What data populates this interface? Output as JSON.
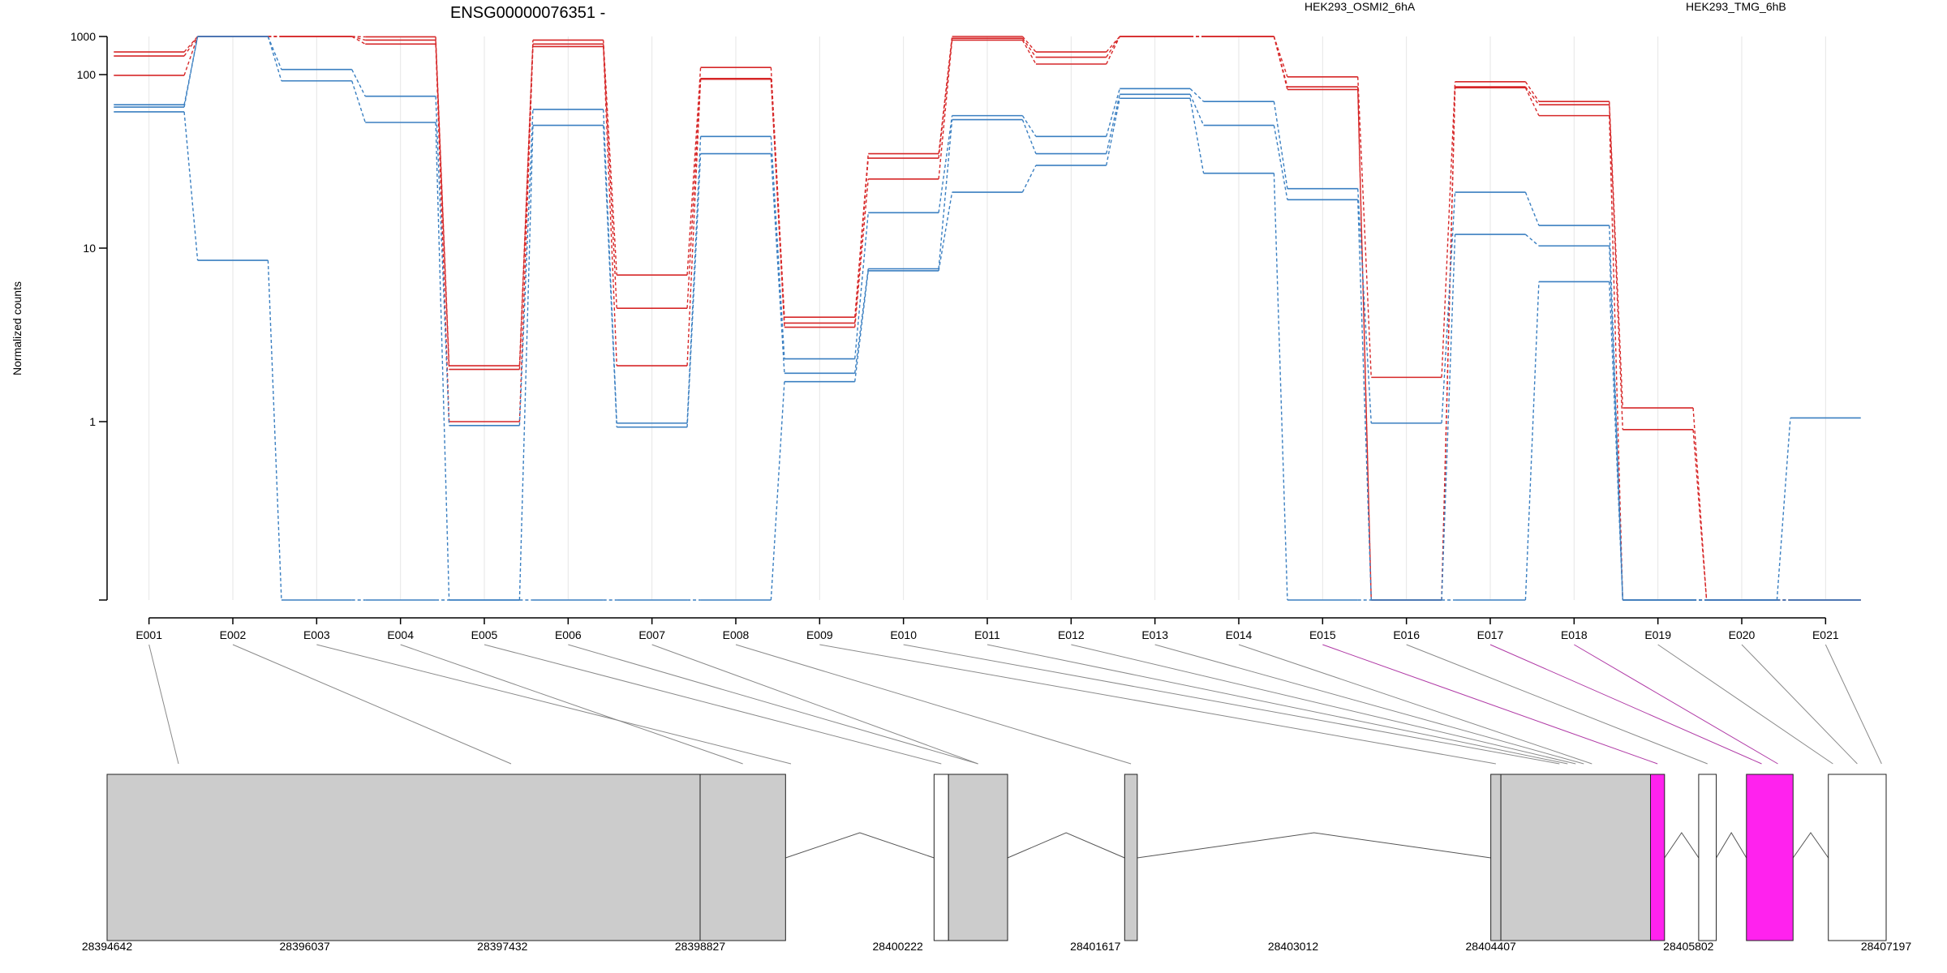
{
  "chart_data": {
    "type": "line",
    "title": "ENSG00000076351 -",
    "ylabel": "Normalized counts",
    "y_scale": "log",
    "y_ticks": [
      1,
      10,
      100,
      1000
    ],
    "y_tick_labels": [
      "1",
      "10",
      "100",
      "1000"
    ],
    "grid": "vertical lines at exon positions",
    "categories": [
      "E001",
      "E002",
      "E003",
      "E004",
      "E005",
      "E006",
      "E007",
      "E008",
      "E009",
      "E010",
      "E011",
      "E012",
      "E013",
      "E014",
      "E015",
      "E016",
      "E017",
      "E018",
      "E019",
      "E020",
      "E021"
    ],
    "legend": [
      {
        "label": "HEK293_OSMI2_6hA",
        "color": "#d62728"
      },
      {
        "label": "HEK293_TMG_6hB",
        "color": "#3a7fc1"
      }
    ],
    "series": [
      {
        "group": "HEK293_OSMI2_6hA",
        "color": "#d62728",
        "values": [
          135,
          1250,
          250,
          165,
          2.1,
          158,
          7.0,
          110,
          4.0,
          35,
          172,
          135,
          280,
          210,
          97,
          1.8,
          91,
          70,
          1.2,
          0.5,
          0.5
        ]
      },
      {
        "group": "HEK293_OSMI2_6hA",
        "color": "#d62728",
        "values": [
          128,
          1150,
          235,
          158,
          2.0,
          150,
          4.5,
          95,
          3.7,
          33,
          162,
          126,
          256,
          202,
          85,
          0.5,
          85,
          67,
          0.9,
          0.5,
          0.5
        ]
      },
      {
        "group": "HEK293_OSMI2_6hA",
        "color": "#d62728",
        "values": [
          99,
          1050,
          215,
          150,
          1.0,
          145,
          2.1,
          94,
          3.5,
          25,
          158,
          115,
          250,
          198,
          82,
          0.5,
          84,
          58,
          0.5,
          0.5,
          0.5
        ]
      },
      {
        "group": "HEK293_TMG_6hB",
        "color": "#3a7fc1",
        "values": [
          67,
          485,
          107,
          75,
          0.95,
          63,
          0.98,
          44,
          2.3,
          16,
          58,
          44,
          83,
          70,
          22,
          0.98,
          21,
          13.5,
          0.5,
          0.5,
          1.05
        ]
      },
      {
        "group": "HEK293_TMG_6hB",
        "color": "#3a7fc1",
        "values": [
          65,
          470,
          92,
          53,
          0.5,
          51,
          0.93,
          35,
          1.9,
          7.6,
          55,
          35,
          77,
          51,
          19,
          0.5,
          12,
          10.3,
          0.5,
          0.5,
          0.5
        ]
      },
      {
        "group": "HEK293_TMG_6hB",
        "color": "#3a7fc1",
        "values": [
          61,
          8.5,
          0.5,
          0.5,
          0.5,
          0.5,
          0.5,
          0.5,
          1.7,
          7.4,
          21,
          30,
          73,
          27,
          0.5,
          0.5,
          0.5,
          6.4,
          0.5,
          0.5,
          0.5
        ]
      }
    ],
    "genomic_axis": {
      "range": [
        28394642,
        28407197
      ],
      "tick_labels": [
        "28394642",
        "28396037",
        "28397432",
        "28398827",
        "28400222",
        "28401617",
        "28403012",
        "28404407",
        "28405802",
        "28407197"
      ]
    },
    "gene_model_blocks": [
      {
        "start": 28394642,
        "end": 28398827,
        "fill": "#cccccc",
        "highlight": false
      },
      {
        "start": 28398827,
        "end": 28399430,
        "fill": "#cccccc",
        "highlight": false
      },
      {
        "start": 28400478,
        "end": 28400580,
        "fill": "#ffffff",
        "highlight": false
      },
      {
        "start": 28400580,
        "end": 28400997,
        "fill": "#cccccc",
        "highlight": false
      },
      {
        "start": 28401823,
        "end": 28401912,
        "fill": "#cccccc",
        "highlight": false
      },
      {
        "start": 28404407,
        "end": 28404478,
        "fill": "#cccccc",
        "highlight": false
      },
      {
        "start": 28404478,
        "end": 28405534,
        "fill": "#cccccc",
        "highlight": false
      },
      {
        "start": 28405534,
        "end": 28405633,
        "fill": "#ff22ee",
        "highlight": true
      },
      {
        "start": 28405874,
        "end": 28405998,
        "fill": "#ffffff",
        "highlight": false
      },
      {
        "start": 28406211,
        "end": 28406540,
        "fill": "#ff22ee",
        "highlight": true
      },
      {
        "start": 28406789,
        "end": 28407197,
        "fill": "#ffffff",
        "highlight": false
      }
    ]
  }
}
